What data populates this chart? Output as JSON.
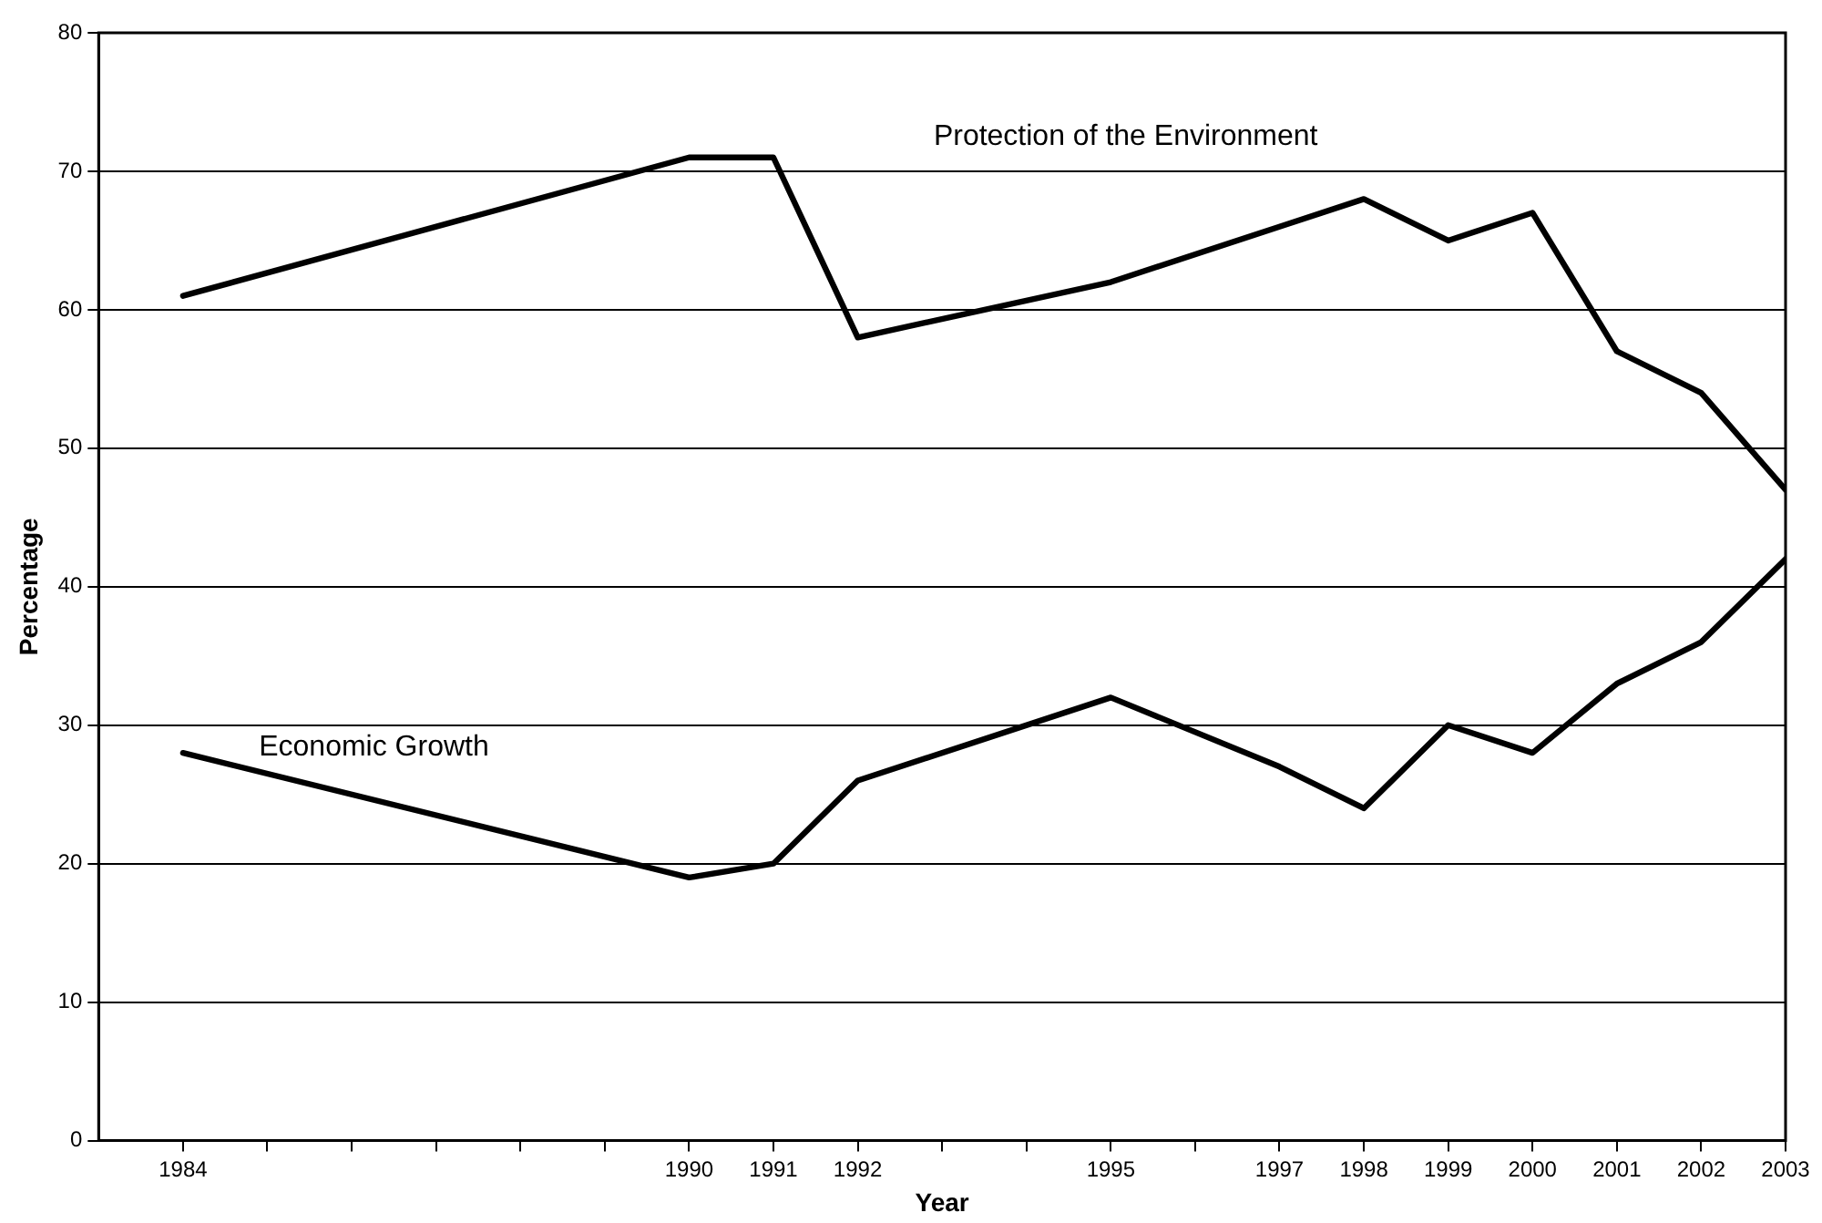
{
  "chart_data": {
    "type": "line",
    "xlabel": "Year",
    "ylabel": "Percentage",
    "x": [
      1984,
      1990,
      1991,
      1992,
      1995,
      1997,
      1998,
      1999,
      2000,
      2001,
      2002,
      2003
    ],
    "series": [
      {
        "name": "Protection of the Environment",
        "color": "#000000",
        "values": [
          61,
          71,
          71,
          58,
          62,
          66,
          68,
          65,
          67,
          57,
          54,
          47
        ]
      },
      {
        "name": "Economic Growth",
        "color": "#000000",
        "values": [
          28,
          19,
          20,
          26,
          32,
          27,
          24,
          30,
          28,
          33,
          36,
          42
        ]
      }
    ],
    "xlim": [
      1983,
      2003
    ],
    "xticks": [
      1984,
      {
        "value": 1985,
        "label": null
      },
      {
        "value": 1986,
        "label": null
      },
      {
        "value": 1987,
        "label": null
      },
      {
        "value": 1988,
        "label": null
      },
      {
        "value": 1989,
        "label": null
      },
      1990,
      1991,
      1992,
      {
        "value": 1993,
        "label": null
      },
      {
        "value": 1994,
        "label": null
      },
      1995,
      {
        "value": 1996,
        "label": null
      },
      1997,
      1998,
      1999,
      2000,
      2001,
      2002,
      2003
    ],
    "ylim": [
      0,
      80
    ],
    "yticks": [
      0,
      10,
      20,
      30,
      40,
      50,
      60,
      70,
      80
    ],
    "grid": "y",
    "legend": false,
    "marker": "none",
    "line_style": "solid"
  }
}
